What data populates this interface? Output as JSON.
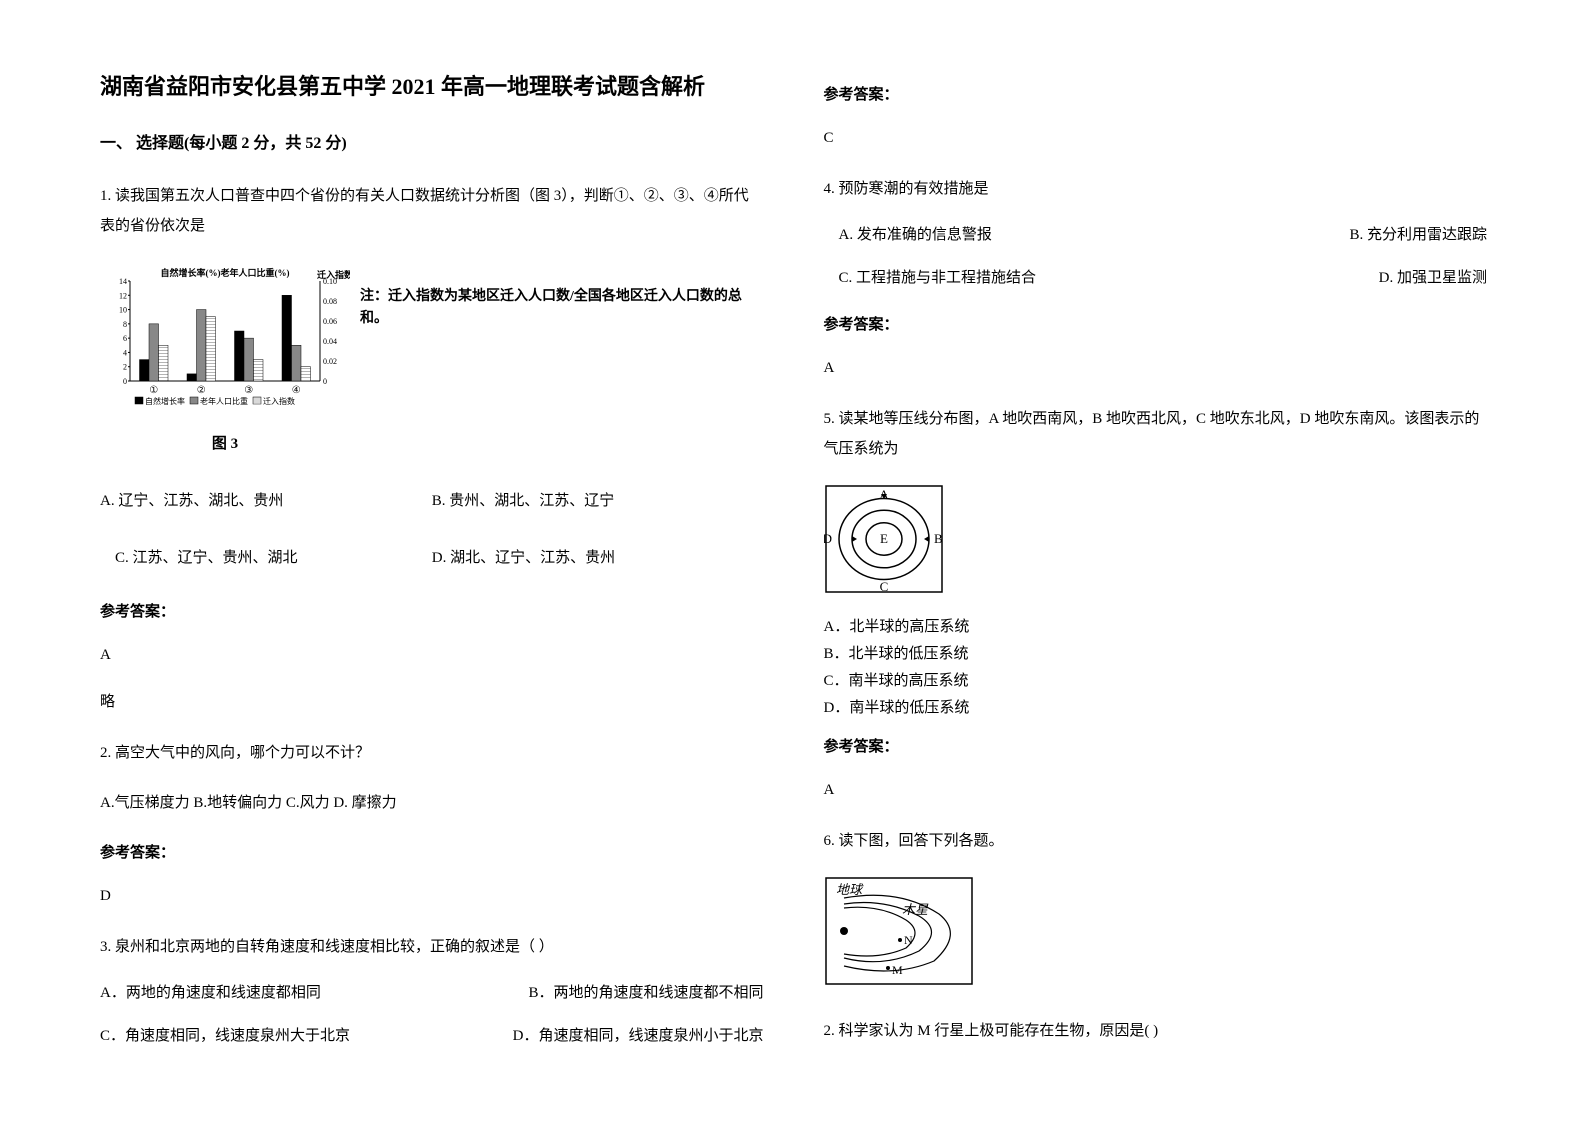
{
  "title": "湖南省益阳市安化县第五中学 2021 年高一地理联考试题含解析",
  "section1_header": "一、 选择题(每小题 2 分，共 52 分)",
  "q1": {
    "text": "1. 读我国第五次人口普查中四个省份的有关人口数据统计分析图（图 3），判断①、②、③、④所代表的省份依次是",
    "chart": {
      "left_axis_label": "自然增长率(%)老年人口比重(%)",
      "right_axis_label": "迁入指数",
      "left_ticks": [
        "14",
        "12",
        "10",
        "8",
        "6",
        "4",
        "2",
        "0"
      ],
      "right_ticks": [
        "0.10",
        "0.08",
        "0.06",
        "0.04",
        "0.02",
        "0"
      ],
      "categories": [
        "①",
        "②",
        "③",
        "④"
      ],
      "legend": [
        "自然增长率",
        "老年人口比重",
        "迁入指数"
      ],
      "caption": "图 3",
      "note": "注：迁入指数为某地区迁入人口数/全国各地区迁入人口数的总和。",
      "series": {
        "growth_rate": [
          3,
          1,
          7,
          12
        ],
        "elderly_ratio": [
          8,
          10,
          6,
          5
        ],
        "migration_index_scaled": [
          5,
          9,
          3,
          2
        ]
      },
      "bar_colors": [
        "#000000",
        "#888888",
        "#ffffff"
      ],
      "grid_color": "#000000",
      "background": "#ffffff"
    },
    "options": {
      "A": "A. 辽宁、江苏、湖北、贵州",
      "B": "B. 贵州、湖北、江苏、辽宁",
      "C": "C. 江苏、辽宁、贵州、湖北",
      "D": "D. 湖北、辽宁、江苏、贵州"
    },
    "answer_label": "参考答案：",
    "answer": "A",
    "explanation": "略"
  },
  "q2": {
    "text": "2. 高空大气中的风向，哪个力可以不计？",
    "options_text": "A.气压梯度力   B.地转偏向力   C.风力      D. 摩擦力",
    "answer_label": "参考答案：",
    "answer": "D"
  },
  "q3": {
    "text": "3. 泉州和北京两地的自转角速度和线速度相比较，正确的叙述是（     ）",
    "options": {
      "A": "A．两地的角速度和线速度都相同",
      "B": "B．两地的角速度和线速度都不相同",
      "C": "C．角速度相同，线速度泉州大于北京",
      "D": "D．角速度相同，线速度泉州小于北京"
    },
    "answer_label": "参考答案：",
    "answer": "C"
  },
  "q4": {
    "text": "4. 预防寒潮的有效措施是",
    "options": {
      "A": "A. 发布准确的信息警报",
      "B": "B. 充分利用雷达跟踪",
      "C": "C. 工程措施与非工程措施结合",
      "D": "D. 加强卫星监测"
    },
    "answer_label": "参考答案：",
    "answer": "A"
  },
  "q5": {
    "text": "5. 读某地等压线分布图，A 地吹西南风，B 地吹西北风，C 地吹东北风，D 地吹东南风。该图表示的气压系统为",
    "diagram": {
      "labels": [
        "A",
        "B",
        "C",
        "D",
        "E"
      ],
      "stroke": "#000000",
      "fill": "#ffffff"
    },
    "options": {
      "A": "A．北半球的高压系统",
      "B": "B．北半球的低压系统",
      "C": "C．南半球的高压系统",
      "D": "D．南半球的低压系统"
    },
    "answer_label": "参考答案：",
    "answer": "A"
  },
  "q6": {
    "text": "6. 读下图，回答下列各题。",
    "diagram": {
      "earth_label": "地球",
      "jupiter_label": "木星",
      "m_label": "M",
      "n_label": "N",
      "stroke": "#000000"
    },
    "subq": "2.  科学家认为 M 行星上极可能存在生物，原因是(     )"
  }
}
